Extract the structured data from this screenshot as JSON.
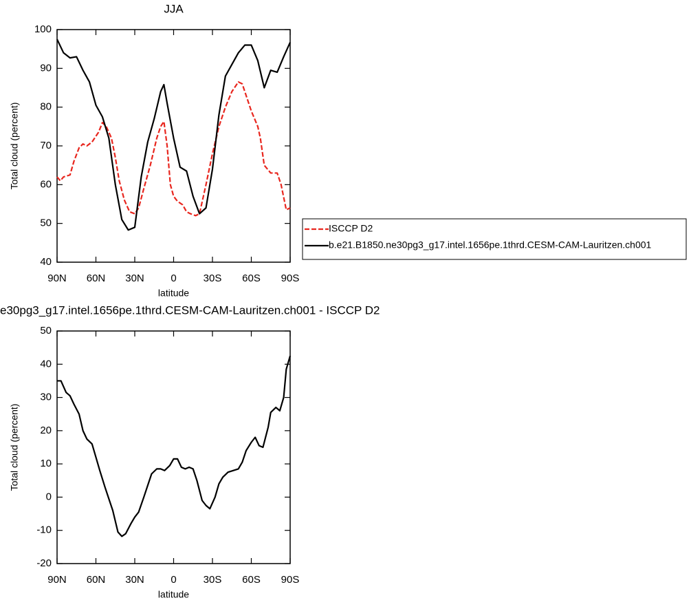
{
  "chart_data": [
    {
      "type": "line",
      "title": "JJA",
      "x_label": "latitude",
      "y_label": "Total cloud (percent)",
      "xlim": [
        90,
        -90
      ],
      "xticks": [
        {
          "value": 90,
          "label": "90N"
        },
        {
          "value": 60,
          "label": "60N"
        },
        {
          "value": 30,
          "label": "30N"
        },
        0,
        {
          "value": -30,
          "label": "30S"
        },
        {
          "value": -60,
          "label": "60S"
        },
        {
          "value": -90,
          "label": "90S"
        }
      ],
      "ylim": [
        40,
        100
      ],
      "yticks": [
        40,
        50,
        60,
        70,
        80,
        90,
        100
      ],
      "legend": "right",
      "series": [
        {
          "name": "ISCCP D2",
          "color": "#e8261e",
          "style": "dashed",
          "x": [
            90,
            87.5,
            85,
            80,
            77,
            73,
            70,
            67,
            63,
            58,
            55,
            52,
            48,
            45,
            42,
            38,
            34,
            30,
            27,
            23,
            18,
            13,
            10,
            7.5,
            5,
            2.5,
            0,
            -3,
            -7,
            -10,
            -13,
            -17,
            -20,
            -25,
            -30,
            -35,
            -40,
            -45,
            -50,
            -53,
            -57,
            -60,
            -65,
            -67,
            -70,
            -75,
            -80,
            -83,
            -87,
            -90
          ],
          "values": [
            62,
            61,
            62,
            62.5,
            66,
            69.5,
            70.5,
            70,
            71,
            73.5,
            76,
            75,
            72,
            67,
            61,
            56,
            53,
            52.5,
            54,
            59,
            65,
            72,
            75,
            76.3,
            70,
            60,
            57,
            55.7,
            54.8,
            53,
            52.5,
            52,
            52.5,
            60,
            68,
            75,
            80,
            84,
            86.5,
            86,
            82,
            79,
            75,
            72,
            65,
            63,
            63,
            60,
            53.5,
            54
          ]
        },
        {
          "name": "b.e21.B1850.ne30pg3_g17.intel.1656pe.1thrd.CESM-CAM-Lauritzen.ch001",
          "color": "#000000",
          "style": "solid",
          "x": [
            90,
            85,
            80,
            75,
            70,
            65,
            60,
            55,
            50,
            45,
            40,
            35,
            30,
            25,
            20,
            15,
            10,
            7.5,
            5,
            0,
            -5,
            -10,
            -15,
            -20,
            -25,
            -30,
            -35,
            -40,
            -45,
            -50,
            -55,
            -60,
            -65,
            -70,
            -75,
            -80,
            -85,
            -90
          ],
          "values": [
            97.5,
            94,
            92.7,
            93,
            89.5,
            86.5,
            80.5,
            77.5,
            72,
            60,
            51,
            48.3,
            49,
            62,
            71,
            77,
            84,
            85.8,
            81,
            72,
            64.5,
            63.5,
            57,
            52.5,
            54,
            64,
            78,
            88,
            91,
            94,
            96,
            96,
            92,
            85,
            89.5,
            89,
            93,
            96.7
          ]
        }
      ]
    },
    {
      "type": "line",
      "title": "e30pg3_g17.intel.1656pe.1thrd.CESM-CAM-Lauritzen.ch001 - ISCCP D2",
      "x_label": "latitude",
      "y_label": "Total cloud (percent)",
      "xlim": [
        90,
        -90
      ],
      "xticks": [
        {
          "value": 90,
          "label": "90N"
        },
        {
          "value": 60,
          "label": "60N"
        },
        {
          "value": 30,
          "label": "30N"
        },
        0,
        {
          "value": -30,
          "label": "30S"
        },
        {
          "value": -60,
          "label": "60S"
        },
        {
          "value": -90,
          "label": "90S"
        }
      ],
      "ylim": [
        -20,
        50
      ],
      "yticks": [
        -20,
        -10,
        0,
        10,
        20,
        30,
        40,
        50
      ],
      "series": [
        {
          "color": "#000000",
          "style": "solid",
          "x": [
            90,
            87,
            83,
            80,
            77,
            73,
            70,
            67,
            63,
            60,
            57,
            53,
            50,
            47,
            43,
            40,
            37,
            33,
            30,
            27,
            23,
            20,
            17,
            13,
            10,
            7,
            3,
            0,
            -3,
            -6,
            -9,
            -12,
            -15,
            -18,
            -22,
            -25,
            -28,
            -32,
            -35,
            -38,
            -42,
            -46,
            -50,
            -53,
            -56,
            -60,
            -63,
            -66,
            -69,
            -73,
            -75,
            -79,
            -82,
            -85,
            -87,
            -90
          ],
          "values": [
            35,
            35,
            31.5,
            30.5,
            28,
            25,
            20,
            17.5,
            16,
            12,
            8,
            3,
            -0.5,
            -4,
            -10.5,
            -11.8,
            -11,
            -8,
            -6,
            -4.5,
            0,
            3.5,
            7,
            8.5,
            8.5,
            8,
            9.5,
            11.5,
            11.5,
            9,
            8.5,
            9,
            8.5,
            5,
            -1,
            -2.5,
            -3.5,
            0,
            4,
            6,
            7.5,
            8,
            8.5,
            10.5,
            14,
            16.5,
            18,
            15.5,
            15,
            21,
            25.5,
            27,
            26,
            30,
            38.5,
            42.5
          ]
        }
      ]
    }
  ]
}
